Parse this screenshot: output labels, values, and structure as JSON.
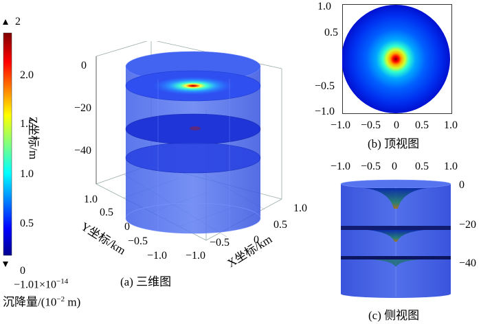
{
  "colorbar": {
    "max_marker": "2",
    "ticks": [
      "2.0",
      "1.5",
      "1.0",
      "0.5",
      "0"
    ],
    "min_label": "−1.01×10",
    "min_exp": "−14",
    "unit_prefix": "沉降量/(10",
    "unit_exp": "−2",
    "unit_suffix": " m)",
    "colormap": [
      "#00007f",
      "#0000ff",
      "#007fff",
      "#00ffff",
      "#7fff7f",
      "#ffff00",
      "#ff7f00",
      "#ff0000",
      "#7f0000"
    ]
  },
  "panel_a": {
    "caption": "(a) 三维图",
    "z_label": "Z坐标/m",
    "z_ticks": [
      "0",
      "−20",
      "−40"
    ],
    "y_label": "Y坐标/km",
    "y_ticks": [
      "1.0",
      "0.5",
      "0",
      "−0.5",
      "−1.0"
    ],
    "x_label": "X坐标/km",
    "x_ticks": [
      "−1.0",
      "−0.5",
      "0",
      "0.5",
      "1.0"
    ]
  },
  "panel_b": {
    "caption": "(b) 顶视图",
    "y_ticks": [
      "1.0",
      "0.5",
      "−0.5",
      "−1.0"
    ],
    "x_ticks": [
      "−1.0",
      "−0.5",
      "0",
      "0.5",
      "1.0"
    ]
  },
  "panel_c": {
    "caption": "(c) 侧视图",
    "x_ticks": [
      "−1.0",
      "−0.5",
      "0",
      "0.5",
      "1.0"
    ],
    "z_ticks": [
      "0",
      "−20",
      "−40"
    ]
  }
}
